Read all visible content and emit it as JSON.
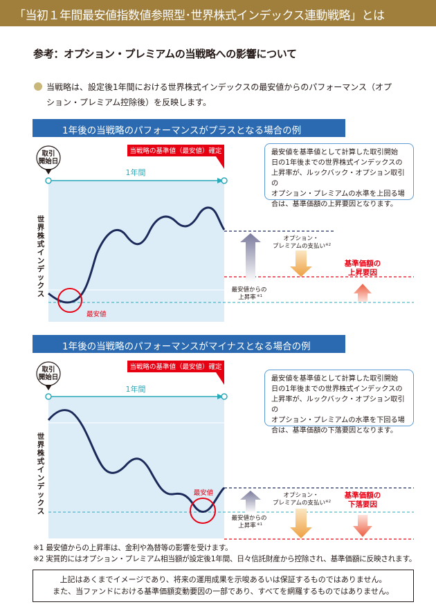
{
  "header": {
    "title": "「当初１年間最安値指数値参照型･世界株式インデックス連動戦略」とは"
  },
  "subtitle": "参考：オプション・プレミアムの当戦略への影響について",
  "intro": {
    "line1": "当戦略は、設定後1年間における世界株式インデックスの最安値からのパフォーマンス（オプ",
    "line2": "ション・プレミアム控除後）を反映します。"
  },
  "section_plus": {
    "heading": "1年後の当戦略のパフォーマンスがプラスとなる場合の例",
    "start_label_1": "取引",
    "start_label_2": "開始日",
    "confirm_label": "当戦略の基準値（最安値）確定",
    "period_label": "1年間",
    "y_axis_label": "世界株式インデックス",
    "low_label": "最安値",
    "premium_label_1": "オプション・",
    "premium_label_2": "プレミアムの支払い",
    "premium_sup": "※2",
    "rise_label_1": "最安値からの",
    "rise_label_2": "上昇率",
    "rise_sup": "※1",
    "factor_label_1": "基準価額の",
    "factor_label_2": "上昇要因",
    "note_lines": [
      "最安値を基準値として計算した取引開始",
      "日の1年後までの世界株式インデックスの",
      "上昇率が、ルックバック・オプション取引の",
      "オプション・プレミアムの水準を上回る場",
      "合は、基準価額の上昇要因となります。"
    ]
  },
  "section_minus": {
    "heading": "1年後の当戦略のパフォーマンスがマイナスとなる場合の例",
    "start_label_1": "取引",
    "start_label_2": "開始日",
    "confirm_label": "当戦略の基準値（最安値）確定",
    "period_label": "1年間",
    "y_axis_label": "世界株式インデックス",
    "low_label": "最安値",
    "premium_label_1": "オプション・",
    "premium_label_2": "プレミアムの支払い",
    "premium_sup": "※2",
    "rise_label_1": "最安値からの",
    "rise_label_2": "上昇率",
    "rise_sup": "※1",
    "factor_label_1": "基準価額の",
    "factor_label_2": "下落要因",
    "note_lines": [
      "最安値を基準値として計算した取引開始",
      "日の1年後までの世界株式インデックスの",
      "上昇率が、ルックバック・オプション取引の",
      "オプション・プレミアムの水準を下回る場",
      "合は、基準価額の下落要因となります。"
    ]
  },
  "footnotes": [
    "※1  最安値からの上昇率は、金利や為替等の影響を受けます。",
    "※2  実質的にはオプション・プレミアム相当額が設定後1年間、日々信託財産から控除され、基準価額に反映されます。"
  ],
  "disclaimer": {
    "line1": "上記はあくまでイメージであり、将来の運用成果を示唆あるいは保証するものではありません。",
    "line2": "また、当ファンドにおける基準価額変動要因の一部であり、すべてを網羅するものではありません。"
  },
  "colors": {
    "header_gold": "#a07f3c",
    "section_blue": "#2b6ab1",
    "chart_bg": "#dcedf8",
    "line_navy": "#1c2a5a",
    "accent_red": "#e60012",
    "teal": "#2aa9b8",
    "orange": "#f0a84c",
    "purple_gray": "#8a8aa8"
  }
}
